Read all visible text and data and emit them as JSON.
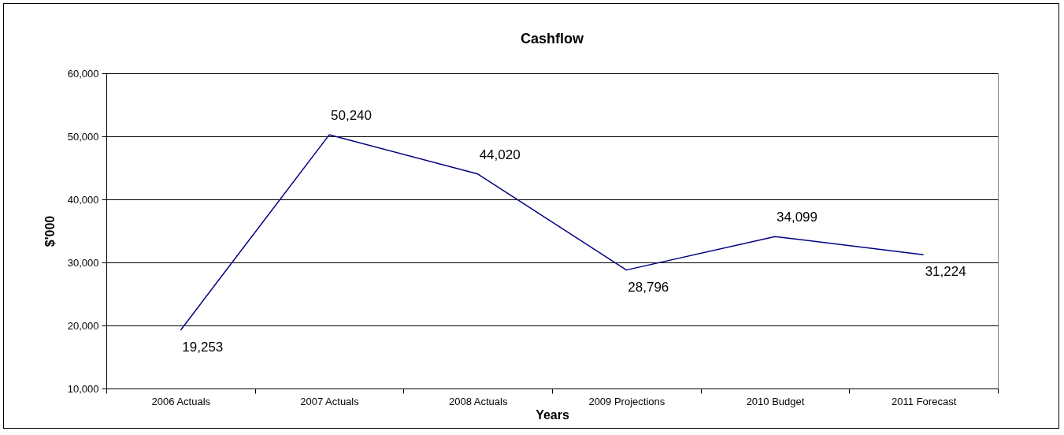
{
  "chart_data": {
    "type": "line",
    "title": "Cashflow",
    "xlabel": "Years",
    "ylabel": "$'000",
    "categories": [
      "2006 Actuals",
      "2007 Actuals",
      "2008 Actuals",
      "2009 Projections",
      "2010 Budget",
      "2011 Forecast"
    ],
    "series": [
      {
        "color": "#000080",
        "values": [
          19253,
          50240,
          44020,
          28796,
          34099,
          31224
        ],
        "value_labels": [
          "19,253",
          "50,240",
          "44,020",
          "28,796",
          "34,099",
          "31,224"
        ]
      }
    ],
    "ylim": [
      10000,
      60000
    ],
    "yticks": [
      {
        "value": 10000,
        "label": "10,000"
      },
      {
        "value": 20000,
        "label": "20,000"
      },
      {
        "value": 30000,
        "label": "30,000"
      },
      {
        "value": 40000,
        "label": "40,000"
      },
      {
        "value": 50000,
        "label": "50,000"
      },
      {
        "value": 60000,
        "label": "60,000"
      }
    ],
    "grid": "y",
    "legend": false,
    "marker": "none",
    "line_style": "solid"
  }
}
